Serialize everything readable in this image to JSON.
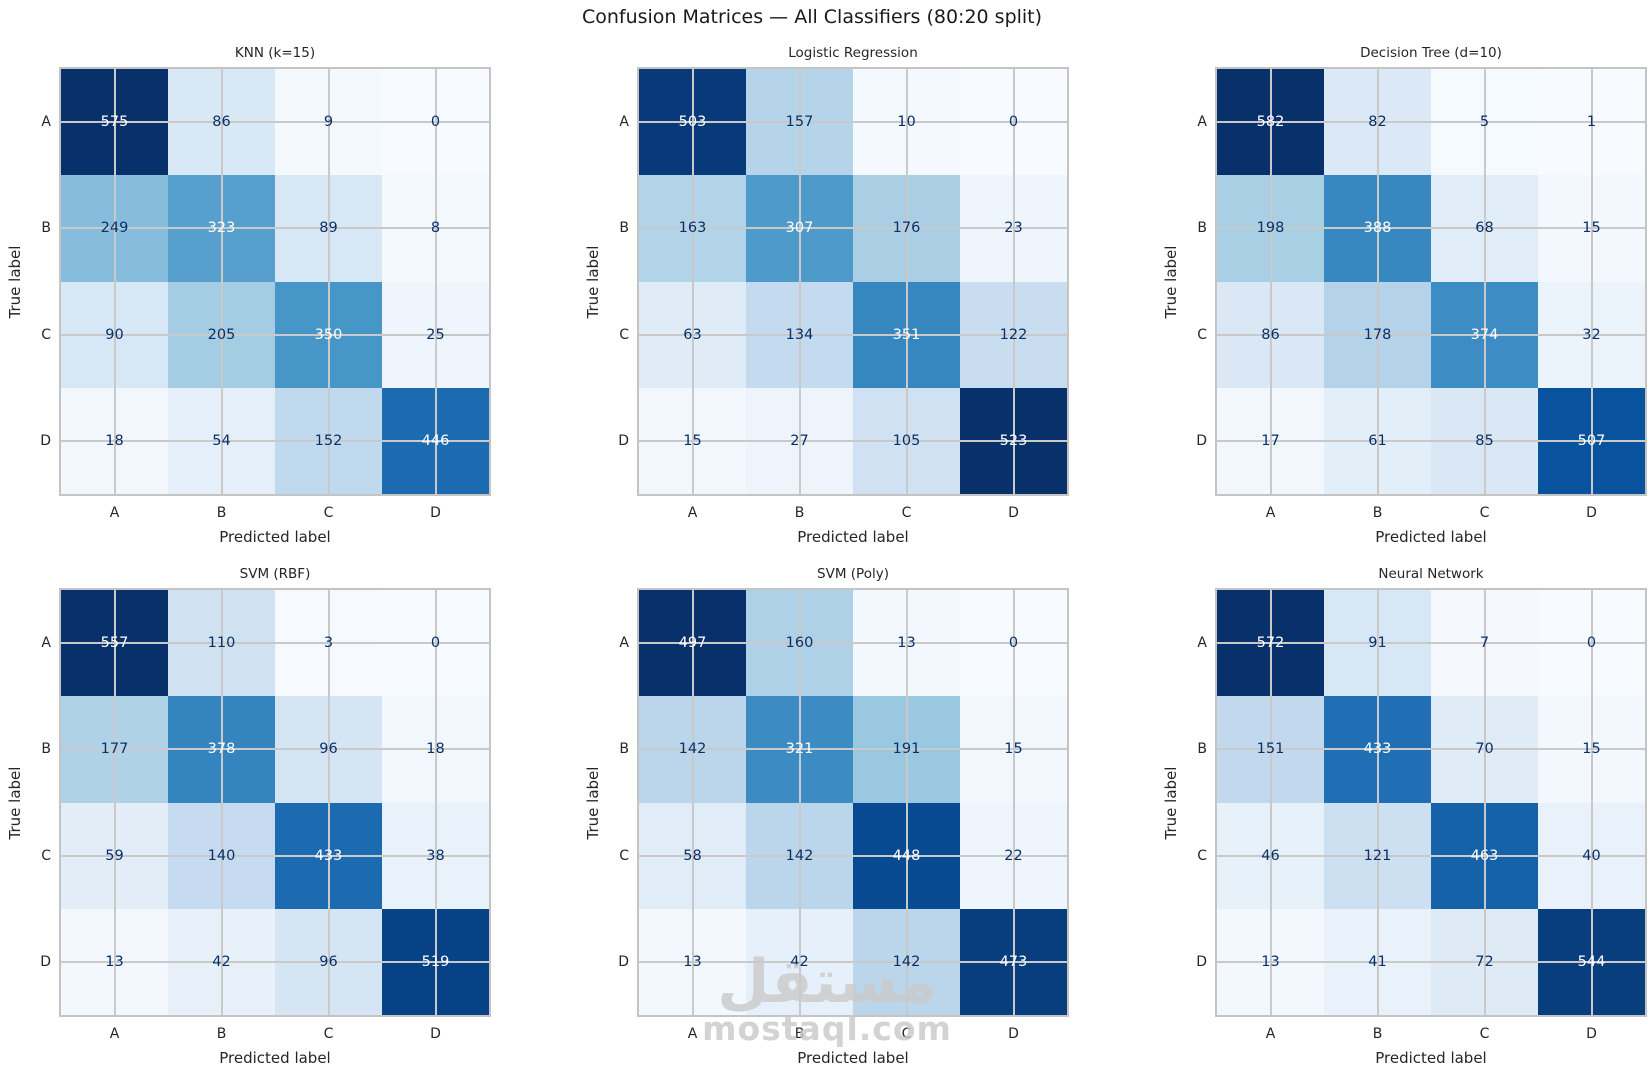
{
  "title": "Confusion Matrices — All Classifiers (80:20 split)",
  "watermark": {
    "arabic": "مستقل",
    "latin": "mostaql.com"
  },
  "colors": {
    "dark_text": "#08306b",
    "light_text": "#ffffff",
    "grid": "#c9c9c9",
    "spine": "#c4c4c4",
    "label_text": "#262626",
    "title_text": "#1a1a1a",
    "colormap_name": "Blues",
    "colormap_stops": [
      "#f7fbff",
      "#deebf7",
      "#c6dbef",
      "#9ecae1",
      "#6baed6",
      "#4292c6",
      "#2171b5",
      "#08519c",
      "#08306b"
    ]
  },
  "chart_data": [
    {
      "type": "heatmap",
      "title": "KNN (k=15)",
      "x_categories": [
        "A",
        "B",
        "C",
        "D"
      ],
      "y_categories": [
        "A",
        "B",
        "C",
        "D"
      ],
      "xlabel": "Predicted label",
      "ylabel": "True label",
      "values": [
        [
          575,
          86,
          9,
          0
        ],
        [
          249,
          323,
          89,
          8
        ],
        [
          90,
          205,
          350,
          25
        ],
        [
          18,
          54,
          152,
          446
        ]
      ]
    },
    {
      "type": "heatmap",
      "title": "Logistic Regression",
      "x_categories": [
        "A",
        "B",
        "C",
        "D"
      ],
      "y_categories": [
        "A",
        "B",
        "C",
        "D"
      ],
      "xlabel": "Predicted label",
      "ylabel": "True label",
      "values": [
        [
          503,
          157,
          10,
          0
        ],
        [
          163,
          307,
          176,
          23
        ],
        [
          63,
          134,
          351,
          122
        ],
        [
          15,
          27,
          105,
          523
        ]
      ]
    },
    {
      "type": "heatmap",
      "title": "Decision Tree (d=10)",
      "x_categories": [
        "A",
        "B",
        "C",
        "D"
      ],
      "y_categories": [
        "A",
        "B",
        "C",
        "D"
      ],
      "xlabel": "Predicted label",
      "ylabel": "True label",
      "values": [
        [
          582,
          82,
          5,
          1
        ],
        [
          198,
          388,
          68,
          15
        ],
        [
          86,
          178,
          374,
          32
        ],
        [
          17,
          61,
          85,
          507
        ]
      ]
    },
    {
      "type": "heatmap",
      "title": "SVM (RBF)",
      "x_categories": [
        "A",
        "B",
        "C",
        "D"
      ],
      "y_categories": [
        "A",
        "B",
        "C",
        "D"
      ],
      "xlabel": "Predicted label",
      "ylabel": "True label",
      "values": [
        [
          557,
          110,
          3,
          0
        ],
        [
          177,
          378,
          96,
          18
        ],
        [
          59,
          140,
          433,
          38
        ],
        [
          13,
          42,
          96,
          519
        ]
      ]
    },
    {
      "type": "heatmap",
      "title": "SVM (Poly)",
      "x_categories": [
        "A",
        "B",
        "C",
        "D"
      ],
      "y_categories": [
        "A",
        "B",
        "C",
        "D"
      ],
      "xlabel": "Predicted label",
      "ylabel": "True label",
      "values": [
        [
          497,
          160,
          13,
          0
        ],
        [
          142,
          321,
          191,
          15
        ],
        [
          58,
          142,
          448,
          22
        ],
        [
          13,
          42,
          142,
          473
        ]
      ]
    },
    {
      "type": "heatmap",
      "title": "Neural Network",
      "x_categories": [
        "A",
        "B",
        "C",
        "D"
      ],
      "y_categories": [
        "A",
        "B",
        "C",
        "D"
      ],
      "xlabel": "Predicted label",
      "ylabel": "True label",
      "values": [
        [
          572,
          91,
          7,
          0
        ],
        [
          151,
          433,
          70,
          15
        ],
        [
          46,
          121,
          463,
          40
        ],
        [
          13,
          41,
          72,
          544
        ]
      ]
    }
  ]
}
